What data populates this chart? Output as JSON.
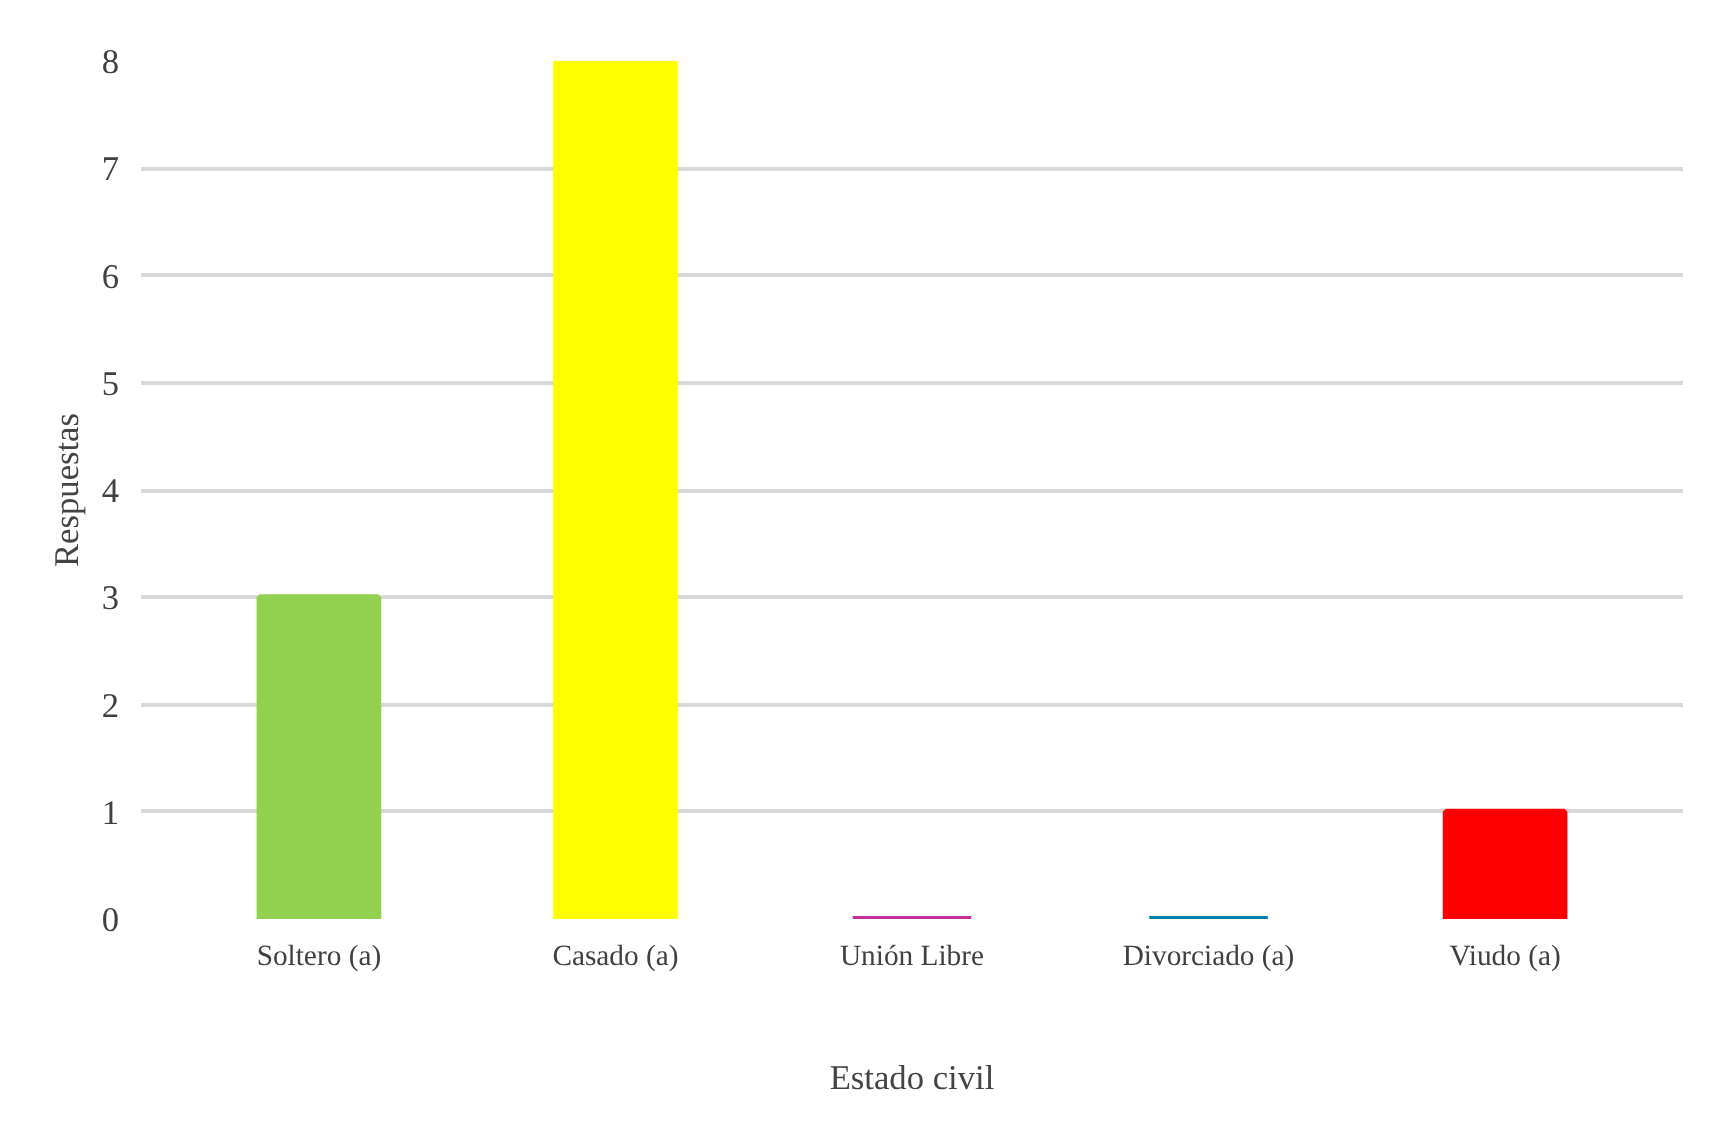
{
  "chart_data": {
    "type": "bar",
    "xlabel": "Estado civil",
    "ylabel": "Respuestas",
    "categories": [
      "Soltero (a)",
      "Casado (a)",
      "Unión Libre",
      "Divorciado (a)",
      "Viudo (a)"
    ],
    "values": [
      3,
      8,
      0,
      0,
      1
    ],
    "colors": [
      "#92d050",
      "#ffff00",
      "#c0309f",
      "#0080b0",
      "#ff0000"
    ],
    "ylim": [
      0,
      8
    ],
    "yticks": [
      0,
      1,
      2,
      3,
      4,
      5,
      6,
      7,
      8
    ],
    "grid": "y"
  }
}
